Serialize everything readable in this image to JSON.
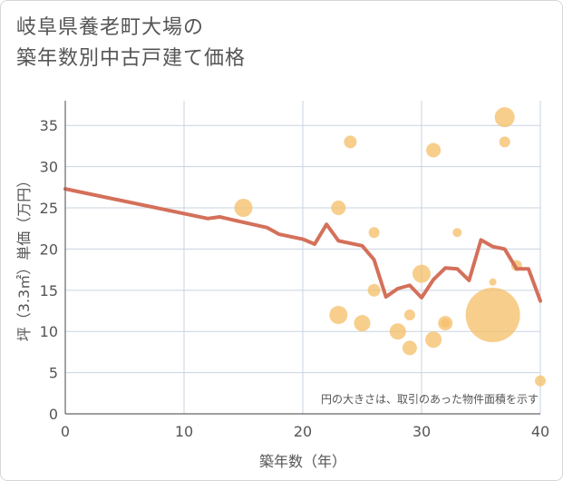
{
  "title_lines": [
    "岐阜県養老町大場の",
    "築年数別中古戸建て価格"
  ],
  "chart_data": {
    "type": "scatter",
    "xlabel": "築年数（年）",
    "ylabel": "坪（3.3㎡）単価（万円）",
    "xlim": [
      0,
      40
    ],
    "ylim": [
      0,
      38
    ],
    "xticks": [
      0,
      10,
      20,
      30,
      40
    ],
    "yticks": [
      0,
      5,
      10,
      15,
      20,
      25,
      30,
      35
    ],
    "grid": true,
    "note": "円の大きさは、取引のあった物件面積を示す",
    "colors": {
      "bubble": "#f5c06b",
      "line": "#d4705a",
      "grid": "#c9d3e0"
    },
    "scatter": [
      {
        "x": 15,
        "y": 25,
        "size": 10
      },
      {
        "x": 23,
        "y": 25,
        "size": 8
      },
      {
        "x": 23,
        "y": 12,
        "size": 10
      },
      {
        "x": 24,
        "y": 33,
        "size": 7
      },
      {
        "x": 25,
        "y": 11,
        "size": 9
      },
      {
        "x": 26,
        "y": 22,
        "size": 6
      },
      {
        "x": 26,
        "y": 15,
        "size": 7
      },
      {
        "x": 28,
        "y": 10,
        "size": 9
      },
      {
        "x": 29,
        "y": 12,
        "size": 6
      },
      {
        "x": 29,
        "y": 8,
        "size": 8
      },
      {
        "x": 30,
        "y": 17,
        "size": 10
      },
      {
        "x": 31,
        "y": 32,
        "size": 8
      },
      {
        "x": 31,
        "y": 9,
        "size": 9
      },
      {
        "x": 32,
        "y": 11,
        "size": 8
      },
      {
        "x": 32,
        "y": 11,
        "size": 5
      },
      {
        "x": 33,
        "y": 22,
        "size": 5
      },
      {
        "x": 36,
        "y": 12,
        "size": 30
      },
      {
        "x": 36,
        "y": 16,
        "size": 4
      },
      {
        "x": 37,
        "y": 36,
        "size": 11
      },
      {
        "x": 37,
        "y": 33,
        "size": 6
      },
      {
        "x": 38,
        "y": 18,
        "size": 6
      },
      {
        "x": 40,
        "y": 4,
        "size": 6
      }
    ],
    "trend_line": {
      "x": [
        0,
        12,
        13,
        17,
        18,
        20,
        21,
        22,
        23,
        25,
        26,
        27,
        28,
        29,
        30,
        31,
        32,
        33,
        34,
        35,
        36,
        37,
        38,
        39,
        40
      ],
      "y": [
        27.3,
        23.7,
        23.9,
        22.6,
        21.8,
        21.2,
        20.6,
        23.0,
        21.0,
        20.4,
        18.7,
        14.2,
        15.2,
        15.6,
        14.1,
        16.3,
        17.7,
        17.6,
        16.2,
        21.1,
        20.3,
        20.0,
        17.6,
        17.6,
        13.7
      ]
    }
  }
}
